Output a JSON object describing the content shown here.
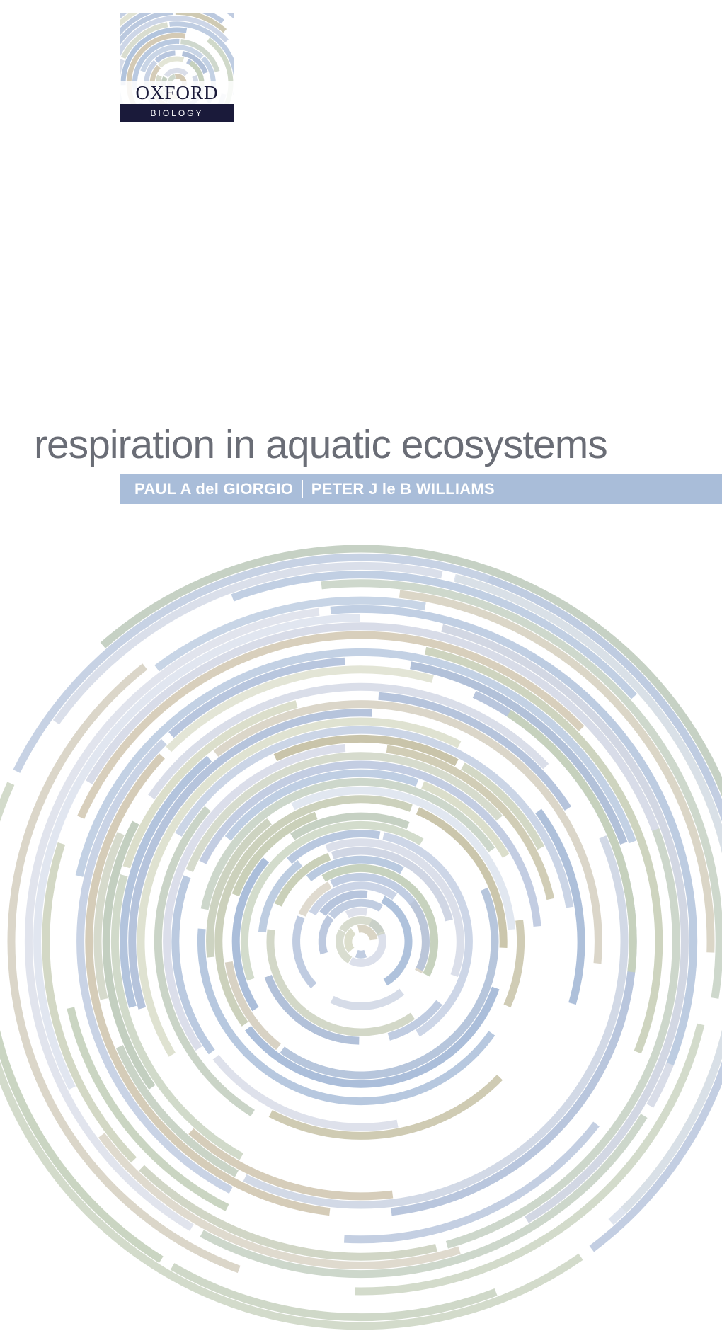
{
  "publisher": {
    "name": "OXFORD",
    "series": "BIOLOGY",
    "name_color": "#1a1a3a",
    "series_bg": "#1a1a3a",
    "series_color": "#ffffff"
  },
  "title": {
    "text": "respiration in aquatic ecosystems",
    "color": "#6a6d76",
    "fontsize": 57
  },
  "authors": {
    "bar_color": "#a9bdd9",
    "text_color": "#ffffff",
    "list": [
      "PAUL A del GIORGIO",
      "PETER J le B WILLIAMS"
    ]
  },
  "rings": {
    "background": "#ffffff",
    "palette": [
      "#b7c4dc",
      "#cfd6e4",
      "#d9dcc8",
      "#c6d1bd",
      "#a9bdd9",
      "#d3c9b4",
      "#bfcbe0",
      "#d9e0ec",
      "#c9cfb8",
      "#b0c0d8",
      "#d6d0c1",
      "#c2cebf",
      "#adbfda",
      "#d1d6e2",
      "#c8c3a8",
      "#b9c9df",
      "#d8dce8",
      "#ccd2c0",
      "#b3c2db",
      "#d0cab6"
    ]
  }
}
